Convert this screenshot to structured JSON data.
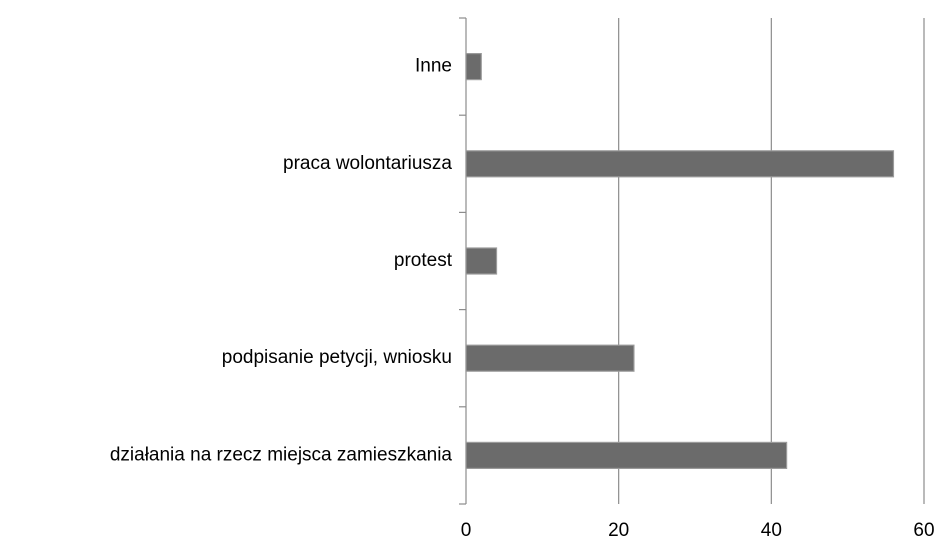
{
  "chart_data": {
    "type": "barh",
    "categories": [
      "Inne",
      "praca wolontariusza",
      "protest",
      "podpisanie petycji, wniosku",
      "działania na rzecz miejsca zamieszkania"
    ],
    "values": [
      2,
      56,
      4,
      22,
      42
    ],
    "color": "#6b6b6b",
    "xlim": [
      0,
      60
    ],
    "xticks": [
      0,
      20,
      40,
      60
    ],
    "grid": true
  }
}
